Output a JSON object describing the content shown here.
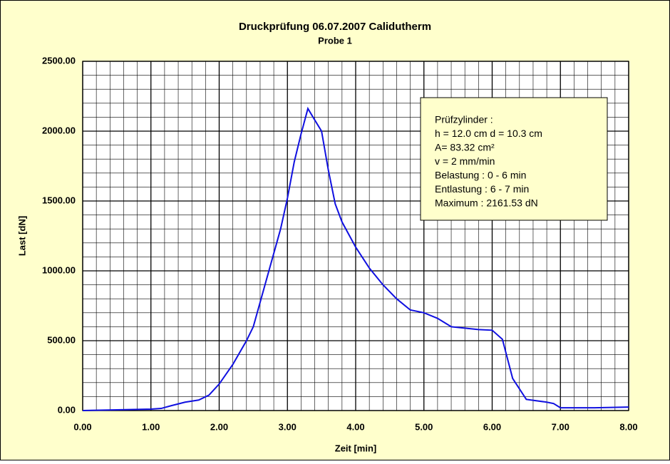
{
  "chart_data": {
    "type": "line",
    "title": "Druckprüfung 06.07.2007 Calidutherm",
    "subtitle": "Probe 1",
    "x_label": "Zeit [min]",
    "y_label": "Last [dN]",
    "annotation": [
      "Prüfzylinder :",
      "h = 12.0 cm  d = 10.3 cm",
      "A= 83.32 cm²",
      "v = 2 mm/min",
      "Belastung : 0 - 6 min",
      "Entlastung : 6 - 7 min",
      "Maximum : 2161.53 dN"
    ],
    "x": [
      0,
      0.5,
      1.0,
      1.15,
      1.3,
      1.5,
      1.7,
      1.85,
      2.0,
      2.2,
      2.4,
      2.5,
      2.7,
      2.9,
      3.0,
      3.1,
      3.2,
      3.3,
      3.4,
      3.5,
      3.6,
      3.7,
      3.8,
      4.0,
      4.2,
      4.4,
      4.6,
      4.8,
      5.0,
      5.2,
      5.4,
      5.6,
      5.8,
      6.0,
      6.15,
      6.3,
      6.5,
      6.8,
      6.9,
      7.0,
      7.5,
      8.0
    ],
    "series": [
      {
        "color": "#1010e0",
        "values": [
          0,
          5,
          10,
          15,
          35,
          60,
          75,
          110,
          190,
          330,
          500,
          600,
          950,
          1300,
          1520,
          1780,
          1980,
          2161.53,
          2080,
          2000,
          1720,
          1480,
          1350,
          1170,
          1020,
          900,
          800,
          720,
          700,
          660,
          600,
          590,
          580,
          575,
          510,
          230,
          80,
          60,
          50,
          20,
          20,
          25
        ]
      }
    ],
    "xlim": [
      0,
      8
    ],
    "ylim": [
      0,
      2500
    ],
    "xticks": [
      {
        "value": 0,
        "label": "0.00"
      },
      {
        "value": 1,
        "label": "1.00"
      },
      {
        "value": 2,
        "label": "2.00"
      },
      {
        "value": 3,
        "label": "3.00"
      },
      {
        "value": 4,
        "label": "4.00"
      },
      {
        "value": 5,
        "label": "5.00"
      },
      {
        "value": 6,
        "label": "6.00"
      },
      {
        "value": 7,
        "label": "7.00"
      },
      {
        "value": 8,
        "label": "8.00"
      }
    ],
    "yticks": [
      {
        "value": 0,
        "label": "0.00"
      },
      {
        "value": 500,
        "label": "500.00"
      },
      {
        "value": 1000,
        "label": "1000.00"
      },
      {
        "value": 1500,
        "label": "1500.00"
      },
      {
        "value": 2000,
        "label": "2000.00"
      },
      {
        "value": 2500,
        "label": "2500.00"
      }
    ],
    "grid": true,
    "minor_grid_divisions": 5
  }
}
